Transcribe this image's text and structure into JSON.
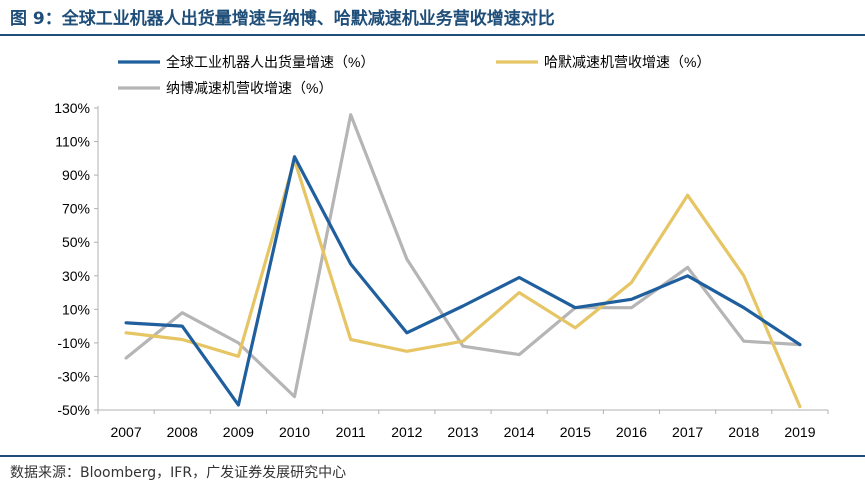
{
  "figure": {
    "title": "图 9：全球工业机器人出货量增速与纳博、哈默减速机业务营收增速对比",
    "source": "数据来源：Bloomberg，IFR，广发证券发展研究中心"
  },
  "chart_data": {
    "type": "line",
    "x": [
      "2007",
      "2008",
      "2009",
      "2010",
      "2011",
      "2012",
      "2013",
      "2014",
      "2015",
      "2016",
      "2017",
      "2018",
      "2019"
    ],
    "y_ticks": [
      "130%",
      "110%",
      "90%",
      "70%",
      "50%",
      "30%",
      "10%",
      "-10%",
      "-30%",
      "-50%"
    ],
    "ylim": [
      -50,
      130
    ],
    "grid": false,
    "legend_position": "top",
    "series": [
      {
        "name": "全球工业机器人出货量增速（%）",
        "color": "#1f5f9e",
        "values": [
          2,
          0,
          -47,
          101,
          37,
          -4,
          12,
          29,
          11,
          16,
          30,
          11,
          -11
        ]
      },
      {
        "name": "哈默减速机营收增速（%）",
        "color": "#e6c565",
        "values": [
          -4,
          -8,
          -18,
          99,
          -8,
          -15,
          -9,
          20,
          -1,
          26,
          78,
          30,
          -48
        ]
      },
      {
        "name": "纳博减速机营收增速（%）",
        "color": "#b5b5b5",
        "values": [
          -19,
          8,
          -10,
          -42,
          126,
          40,
          -12,
          -17,
          11,
          11,
          35,
          -9,
          -11
        ]
      }
    ]
  }
}
